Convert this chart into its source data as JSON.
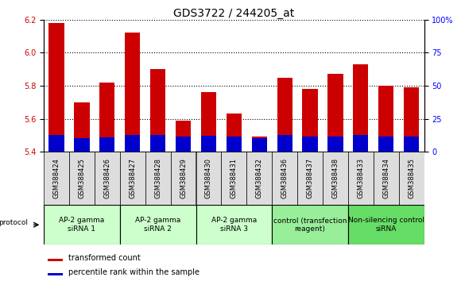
{
  "title": "GDS3722 / 244205_at",
  "samples": [
    "GSM388424",
    "GSM388425",
    "GSM388426",
    "GSM388427",
    "GSM388428",
    "GSM388429",
    "GSM388430",
    "GSM388431",
    "GSM388432",
    "GSM388436",
    "GSM388437",
    "GSM388438",
    "GSM388433",
    "GSM388434",
    "GSM388435"
  ],
  "transformed_count": [
    6.18,
    5.7,
    5.82,
    6.12,
    5.9,
    5.59,
    5.76,
    5.63,
    5.49,
    5.85,
    5.78,
    5.87,
    5.93,
    5.8,
    5.79
  ],
  "percentile_rank": [
    13.0,
    10.5,
    11.0,
    13.0,
    12.5,
    11.5,
    12.0,
    11.5,
    10.5,
    12.5,
    11.5,
    11.5,
    12.5,
    11.5,
    11.5
  ],
  "ylim_left": [
    5.4,
    6.2
  ],
  "ylim_right": [
    0,
    100
  ],
  "right_ticks": [
    0,
    25,
    50,
    75,
    100
  ],
  "left_ticks": [
    5.4,
    5.6,
    5.8,
    6.0,
    6.2
  ],
  "bar_color_red": "#cc0000",
  "bar_color_blue": "#0000cc",
  "bar_base": 5.4,
  "groups": [
    {
      "label": "AP-2 gamma\nsiRNA 1",
      "indices": [
        0,
        1,
        2
      ],
      "color": "#ccffcc"
    },
    {
      "label": "AP-2 gamma\nsiRNA 2",
      "indices": [
        3,
        4,
        5
      ],
      "color": "#ccffcc"
    },
    {
      "label": "AP-2 gamma\nsiRNA 3",
      "indices": [
        6,
        7,
        8
      ],
      "color": "#ccffcc"
    },
    {
      "label": "control (transfection\nreagent)",
      "indices": [
        9,
        10,
        11
      ],
      "color": "#99ee99"
    },
    {
      "label": "Non-silencing control\nsiRNA",
      "indices": [
        12,
        13,
        14
      ],
      "color": "#66dd66"
    }
  ],
  "protocol_label": "protocol",
  "legend_red": "transformed count",
  "legend_blue": "percentile rank within the sample",
  "title_fontsize": 10,
  "tick_fontsize": 7,
  "sample_fontsize": 6,
  "group_fontsize": 6.5,
  "legend_fontsize": 7
}
